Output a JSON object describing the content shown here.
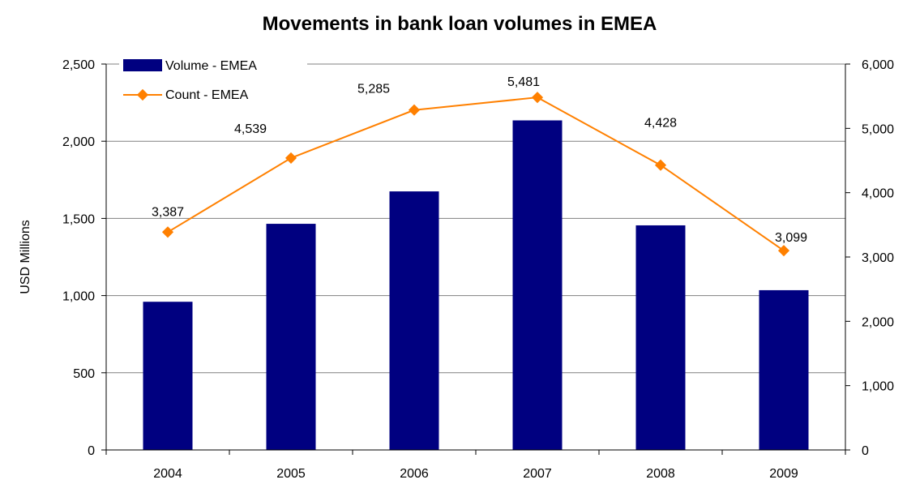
{
  "chart_data": {
    "type": "bar",
    "title": "Movements in bank loan volumes in EMEA",
    "ylabel": "USD Millions",
    "y2label": "",
    "categories": [
      "2004",
      "2005",
      "2006",
      "2007",
      "2008",
      "2009"
    ],
    "ylim": [
      0,
      2500
    ],
    "y_ticks": [
      "0",
      "500",
      "1,000",
      "1,500",
      "2,000",
      "2,500"
    ],
    "y2lim": [
      0,
      6000
    ],
    "y2_ticks": [
      "0",
      "1,000",
      "2,000",
      "3,000",
      "4,000",
      "5,000",
      "6,000"
    ],
    "grid": true,
    "legend_position": "top-left",
    "series": [
      {
        "name": "Volume - EMEA",
        "type": "bar",
        "axis": "left",
        "color": "#000080",
        "values": [
          960,
          1465,
          1675,
          2135,
          1455,
          1035
        ]
      },
      {
        "name": "Count - EMEA",
        "type": "line",
        "axis": "right",
        "color": "#FF8000",
        "values": [
          3387,
          4539,
          5285,
          5481,
          4428,
          3099
        ],
        "data_labels": [
          "3,387",
          "4,539",
          "5,285",
          "5,481",
          "4,428",
          "3,099"
        ]
      }
    ]
  }
}
